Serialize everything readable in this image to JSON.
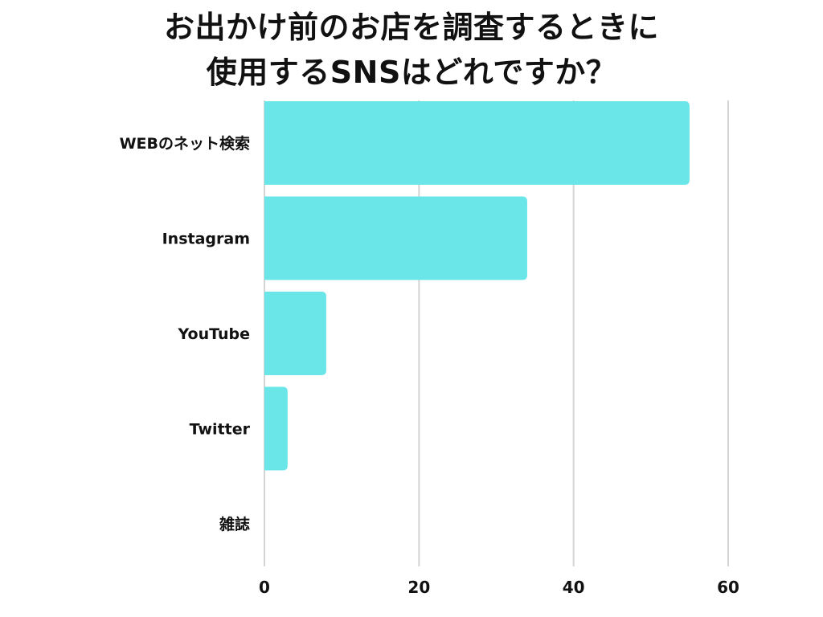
{
  "chart_data": {
    "type": "bar",
    "orientation": "horizontal",
    "title": "お出かけ前のお店を調査するときに使用するSNSはどれですか？",
    "title_lines": [
      "お出かけ前のお店を調査するときに",
      "使用するSNSはどれですか？"
    ],
    "categories": [
      "WEBのネット検索",
      "Instagram",
      "YouTube",
      "Twitter",
      "雑誌"
    ],
    "values": [
      55,
      34,
      8,
      3,
      0
    ],
    "xlim": [
      0,
      60
    ],
    "xticks": [
      0,
      20,
      40,
      60
    ],
    "xlabel": "",
    "ylabel": "",
    "grid": true,
    "bar_color": "#6ae6e9",
    "grid_color": "#d4d4d4"
  }
}
